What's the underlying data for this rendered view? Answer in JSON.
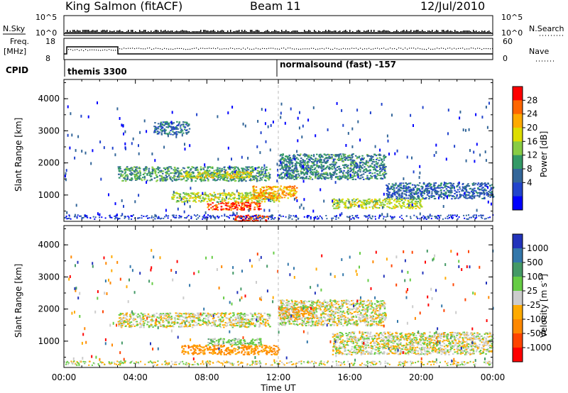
{
  "header": {
    "radar": "King Salmon (fitACF)",
    "beam": "Beam 11",
    "date": "12/Jul/2010"
  },
  "params_panel": {
    "nsky_label": "N.Sky",
    "nsearch_label": "N.Search",
    "freq_label": "Freq.",
    "freq_unit": "[MHz]",
    "nave_label": "Nave",
    "cpid_label": "CPID",
    "left_ticks_top": [
      "10^5",
      "10^0"
    ],
    "right_ticks_top": [
      "10^5",
      "10^0"
    ],
    "left_ticks_freq": [
      "18",
      "8"
    ],
    "right_ticks_nave": [
      "60",
      "0"
    ],
    "cpid_entries": [
      "themis 3300",
      "normalsound (fast) -157"
    ]
  },
  "legend_power": {
    "label": "Power [dB]",
    "ticks": [
      "28",
      "24",
      "20",
      "16",
      "12",
      "8",
      "4"
    ],
    "colors": [
      "#ff0000",
      "#ff6600",
      "#ffaa00",
      "#dddd00",
      "#88cc44",
      "#339966",
      "#336699",
      "#2244cc",
      "#0000ff"
    ]
  },
  "legend_velocity": {
    "label": "Velocity [m s",
    "label_sup": "-1",
    "label_end": "]",
    "ticks": [
      "1000",
      "500",
      "100",
      "25",
      "-25",
      "-100",
      "-500",
      "-1000"
    ],
    "colors": [
      "#2233bb",
      "#3377aa",
      "#449966",
      "#66cc44",
      "#cccccc",
      "#ffaa00",
      "#ff8800",
      "#ff4400",
      "#ff0000"
    ]
  },
  "chart_data": [
    {
      "type": "heatmap",
      "title": "Power [dB]",
      "xlabel": "",
      "ylabel": "Slant Range [km]",
      "xlim_hours": [
        0,
        24
      ],
      "ylim_km": [
        180,
        4600
      ],
      "x_tick_labels": [
        "00:00",
        "04:00",
        "08:00",
        "12:00",
        "16:00",
        "20:00",
        "00:00"
      ],
      "y_tick_labels": [
        "1000",
        "2000",
        "3000",
        "4000"
      ],
      "colorbar_range_dB": [
        0,
        32
      ],
      "regions": [
        {
          "t_start": 3.0,
          "t_end": 11.5,
          "range_start": 1450,
          "range_end": 1900,
          "value": 12
        },
        {
          "t_start": 6.5,
          "t_end": 10.5,
          "range_start": 1550,
          "range_end": 1750,
          "value": 20
        },
        {
          "t_start": 8.0,
          "t_end": 11.0,
          "range_start": 550,
          "range_end": 800,
          "value": 30
        },
        {
          "t_start": 9.5,
          "t_end": 11.5,
          "range_start": 200,
          "range_end": 400,
          "value": 30
        },
        {
          "t_start": 6.0,
          "t_end": 12.0,
          "range_start": 800,
          "range_end": 1100,
          "value": 18
        },
        {
          "t_start": 10.5,
          "t_end": 13.0,
          "range_start": 900,
          "range_end": 1300,
          "value": 24
        },
        {
          "t_start": 12.0,
          "t_end": 18.0,
          "range_start": 1500,
          "range_end": 2300,
          "value": 10
        },
        {
          "t_start": 15.0,
          "t_end": 20.0,
          "range_start": 600,
          "range_end": 900,
          "value": 18
        },
        {
          "t_start": 18.0,
          "t_end": 24.0,
          "range_start": 900,
          "range_end": 1400,
          "value": 7
        },
        {
          "t_start": 5.0,
          "t_end": 7.0,
          "range_start": 2900,
          "range_end": 3300,
          "value": 8
        }
      ]
    },
    {
      "type": "heatmap",
      "title": "Velocity [m s-1]",
      "xlabel": "Time UT",
      "ylabel": "Slant Range [km]",
      "xlim_hours": [
        0,
        24
      ],
      "ylim_km": [
        180,
        4600
      ],
      "x_tick_labels": [
        "00:00",
        "04:00",
        "08:00",
        "12:00",
        "16:00",
        "20:00",
        "00:00"
      ],
      "y_tick_labels": [
        "1000",
        "2000",
        "3000",
        "4000"
      ],
      "colorbar_range_ms": [
        -1000,
        1000
      ],
      "regions": [
        {
          "t_start": 3.0,
          "t_end": 11.5,
          "range_start": 1450,
          "range_end": 1900,
          "value": 0
        },
        {
          "t_start": 6.5,
          "t_end": 12.0,
          "range_start": 600,
          "range_end": 900,
          "value": -120
        },
        {
          "t_start": 12.0,
          "t_end": 14.0,
          "range_start": 1700,
          "range_end": 2100,
          "value": -200
        },
        {
          "t_start": 12.0,
          "t_end": 18.0,
          "range_start": 1500,
          "range_end": 2300,
          "value": 0
        },
        {
          "t_start": 15.0,
          "t_end": 24.0,
          "range_start": 600,
          "range_end": 1300,
          "value": 0
        },
        {
          "t_start": 8.0,
          "t_end": 11.0,
          "range_start": 900,
          "range_end": 1100,
          "value": 60
        }
      ]
    }
  ]
}
